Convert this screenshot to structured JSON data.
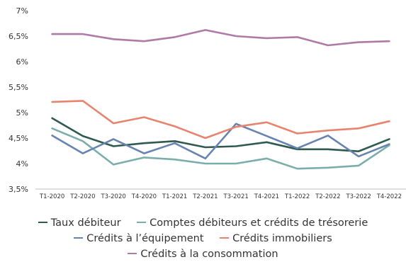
{
  "chart_data": {
    "type": "line",
    "x": [
      "T1-2020",
      "T2-2020",
      "T3-2020",
      "T4-2020",
      "T1-2021",
      "T2-2021",
      "T3-2021",
      "T4-2021",
      "T1-2022",
      "T2-2022",
      "T3-2022",
      "T4-2022"
    ],
    "yticks": [
      "3,5%",
      "4%",
      "4,5%",
      "5%",
      "5,5%",
      "6%",
      "6,5%",
      "7%"
    ],
    "ylim": [
      3.5,
      7
    ],
    "grid": false,
    "legend_position": "bottom",
    "series": [
      {
        "name": "Taux débiteur",
        "color": "#2e5a50",
        "values": [
          4.89,
          4.54,
          4.34,
          4.4,
          4.44,
          4.32,
          4.34,
          4.42,
          4.28,
          4.28,
          4.24,
          4.48
        ]
      },
      {
        "name": "Comptes débiteurs et crédits de trésorerie",
        "color": "#7aaeaa",
        "values": [
          4.69,
          4.44,
          3.98,
          4.12,
          4.08,
          4.0,
          4.0,
          4.1,
          3.9,
          3.92,
          3.96,
          4.36
        ]
      },
      {
        "name": "Crédits à l’équipement",
        "color": "#6683b1",
        "values": [
          4.55,
          4.2,
          4.48,
          4.2,
          4.4,
          4.1,
          4.78,
          4.54,
          4.3,
          4.55,
          4.14,
          4.38
        ]
      },
      {
        "name": "Crédits immobiliers",
        "color": "#e8836e",
        "values": [
          5.21,
          5.23,
          4.79,
          4.91,
          4.73,
          4.5,
          4.72,
          4.81,
          4.59,
          4.65,
          4.69,
          4.83
        ]
      },
      {
        "name": "Crédits à la consommation",
        "color": "#b07aa6",
        "values": [
          6.54,
          6.54,
          6.44,
          6.4,
          6.48,
          6.62,
          6.5,
          6.46,
          6.48,
          6.32,
          6.38,
          6.4
        ]
      }
    ]
  }
}
